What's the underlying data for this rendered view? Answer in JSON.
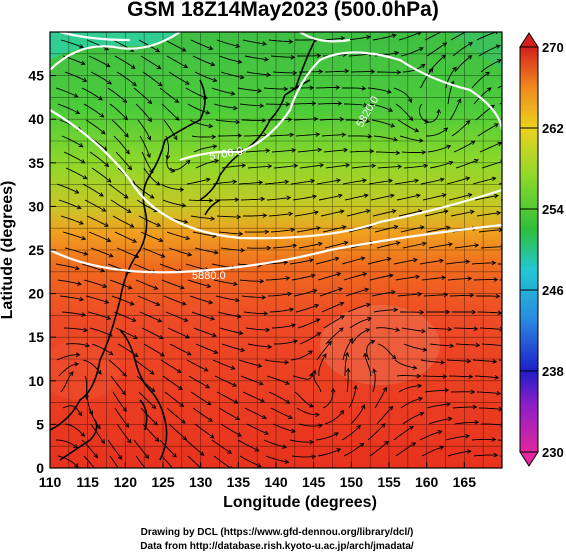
{
  "title": "GSM 18Z14May2023 (500.0hPa)",
  "map": {
    "lon_range": [
      110,
      170
    ],
    "lat_range": [
      0,
      50
    ],
    "x_ticks": [
      "110",
      "115",
      "120",
      "125",
      "130",
      "135",
      "140",
      "145",
      "150",
      "155",
      "160",
      "165"
    ],
    "y_ticks": [
      "0",
      "5",
      "10",
      "15",
      "20",
      "25",
      "30",
      "35",
      "40",
      "45"
    ],
    "x_label": "Longitude (degrees)",
    "y_label": "Latitude (degrees)",
    "contour_labels": [
      "5700.0",
      "5820.0",
      "5880.0"
    ],
    "contour_color": "#ffffff",
    "streamline_color": "#000000",
    "coastline_color": "#000000"
  },
  "colorbar": {
    "max_label": "270",
    "tick_labels": [
      "262",
      "254",
      "246",
      "238"
    ],
    "min_label": "230",
    "colors": [
      "#e0279e",
      "#1e1ec8",
      "#2a8ce0",
      "#22c8d2",
      "#2fbf3a",
      "#8ed82a",
      "#ecd21e",
      "#f08a1e",
      "#e83c1e",
      "#d4201c"
    ]
  },
  "footer": {
    "line1": "Drawing by DCL (https://www.gfd-dennou.org/library/dcl/)",
    "line2": "Data from http://database.rish.kyoto-u.ac.jp/arch/jmadata/"
  }
}
